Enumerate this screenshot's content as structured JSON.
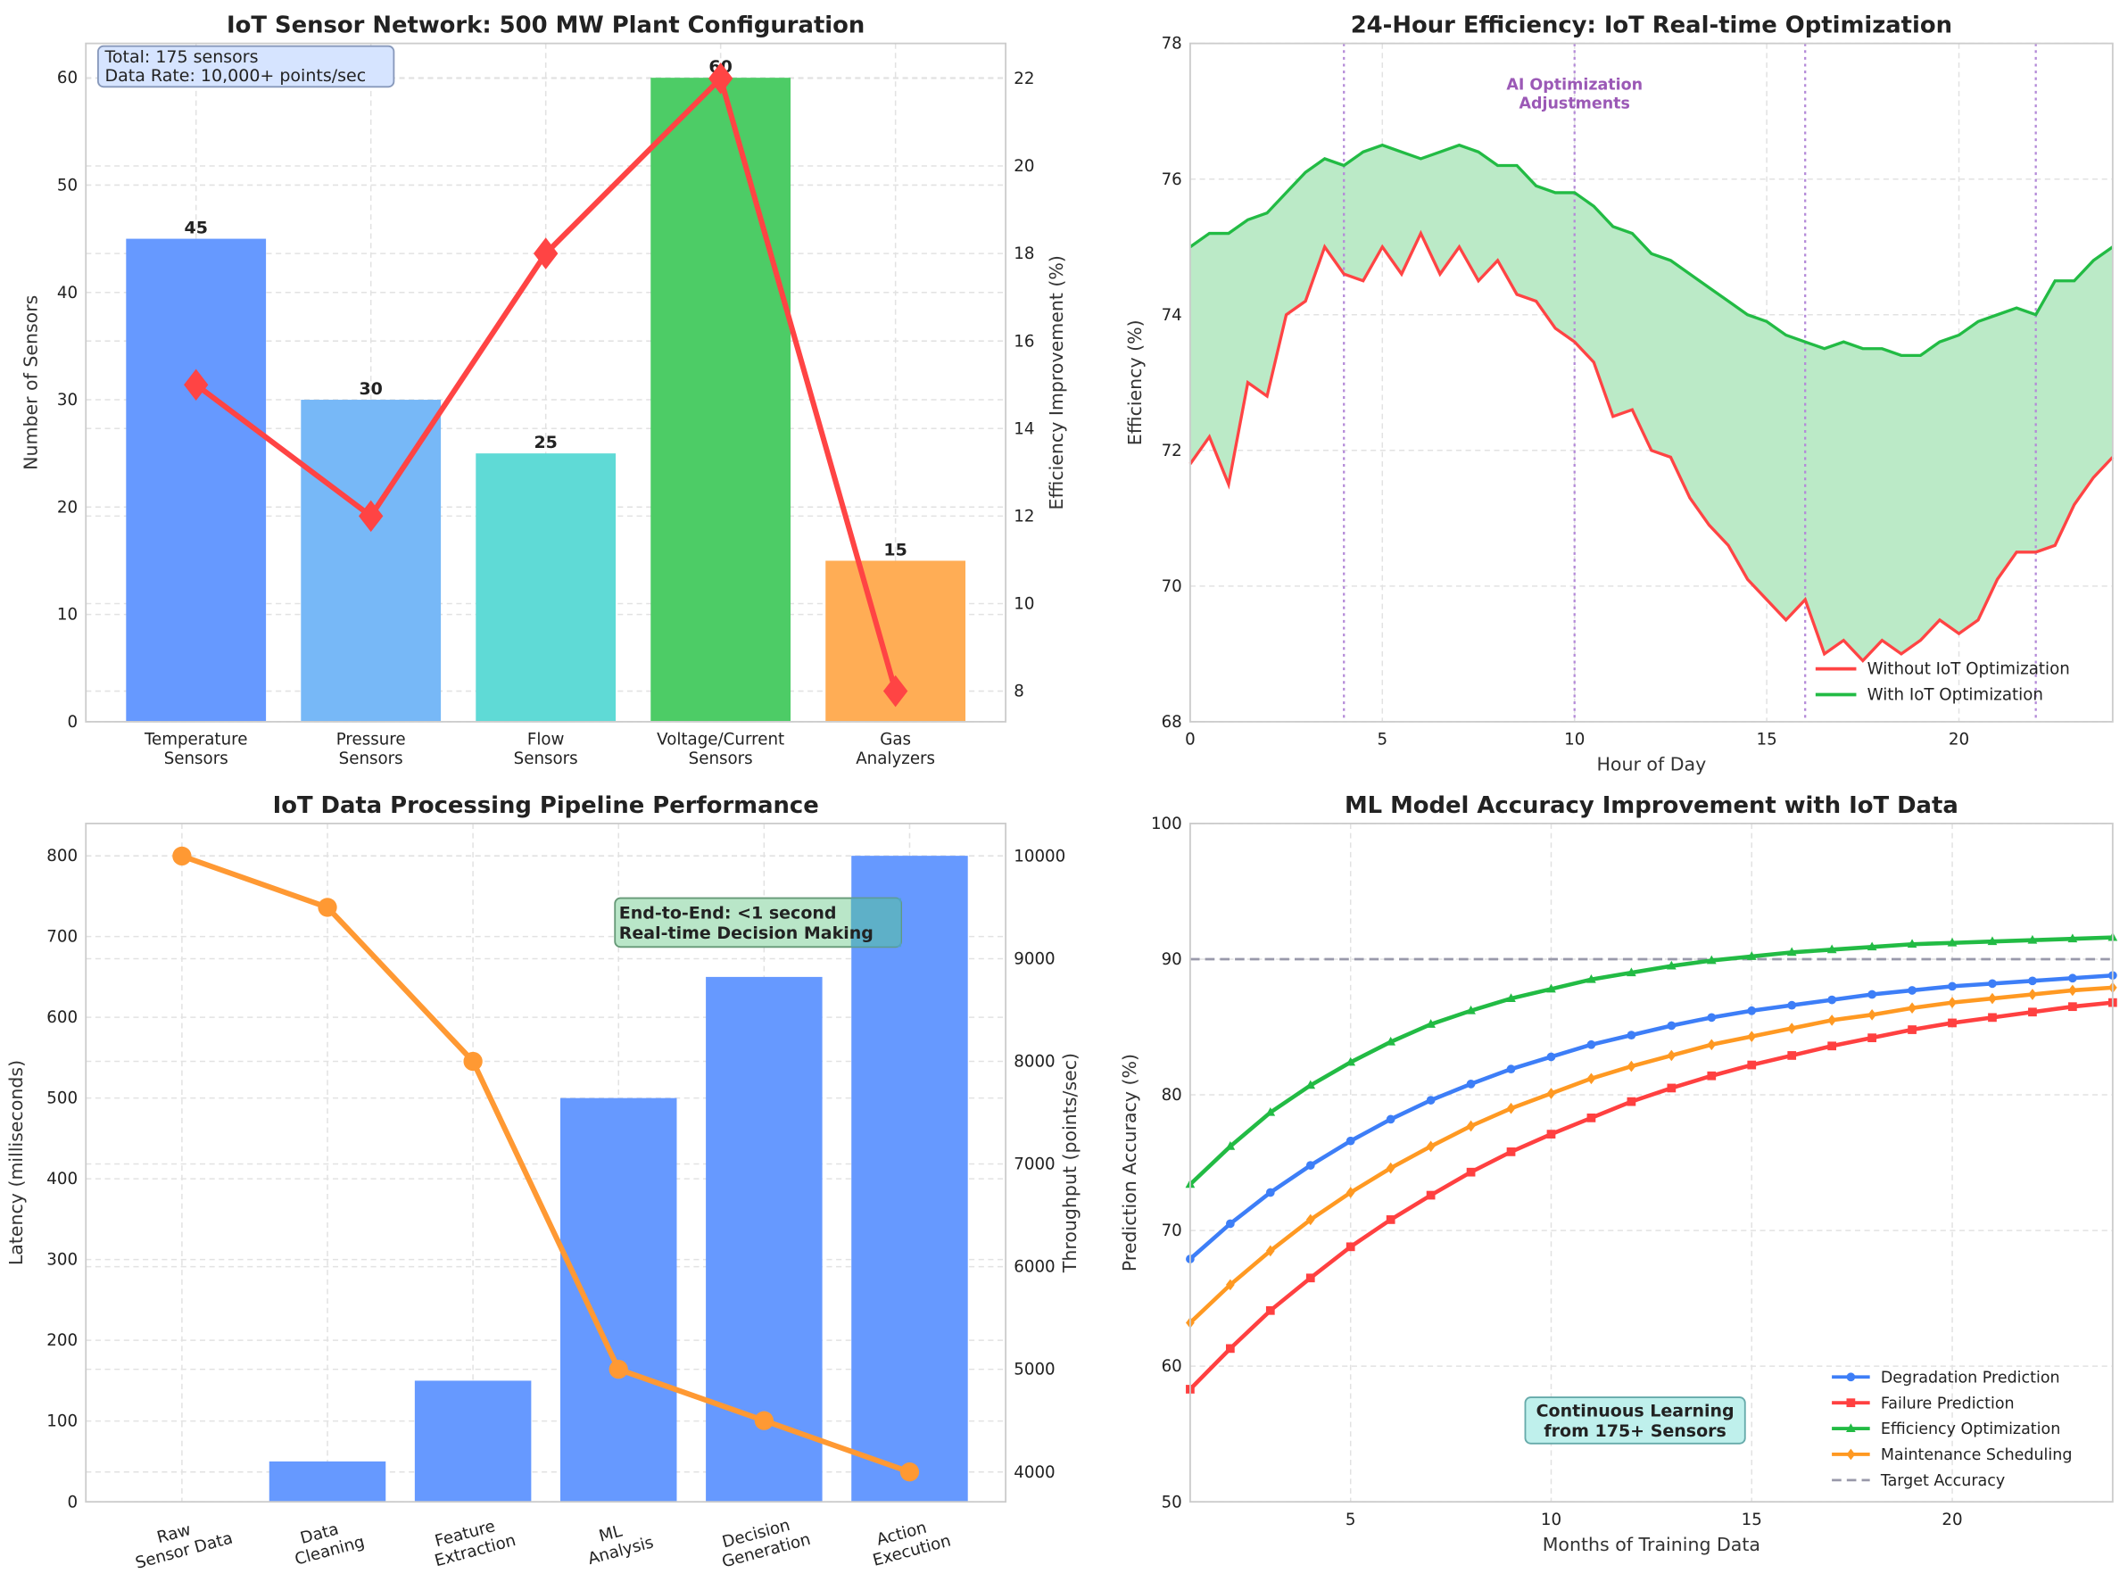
{
  "chart_data": [
    {
      "type": "bar+line",
      "title": "IoT Sensor Network: 500 MW Plant Configuration",
      "categories": [
        [
          "Temperature",
          "Sensors"
        ],
        [
          "Pressure",
          "Sensors"
        ],
        [
          "Flow",
          "Sensors"
        ],
        [
          "Voltage/Current",
          "Sensors"
        ],
        [
          "Gas",
          "Analyzers"
        ]
      ],
      "values": [
        45,
        30,
        25,
        60,
        15
      ],
      "data_labels": [
        "45",
        "30",
        "25",
        "60",
        "15"
      ],
      "bar_colors": [
        "#6699ff",
        "#77b8f7",
        "#5fdad6",
        "#4dcc66",
        "#ffad55"
      ],
      "ylabel": "Number of Sensors",
      "ylim": [
        0,
        63.2
      ],
      "yticks": [
        0,
        10,
        20,
        30,
        40,
        50,
        60
      ],
      "y2label": "Efficiency Improvement (%)",
      "y2lim": [
        7.3,
        22.8
      ],
      "y2ticks": [
        8,
        10,
        12,
        14,
        16,
        18,
        20,
        22
      ],
      "line_values": [
        15,
        12,
        18,
        22,
        8
      ],
      "line_color": "#ff4444",
      "annotation": [
        "Total: 175 sensors",
        "Data Rate: 10,000+ points/sec"
      ],
      "grid": true
    },
    {
      "type": "line",
      "title": "24-Hour Efficiency: IoT Real-time Optimization",
      "xlabel": "Hour of Day",
      "ylabel": "Efficiency (%)",
      "xlim": [
        0,
        24
      ],
      "ylim": [
        68,
        78
      ],
      "xticks": [
        0,
        5,
        10,
        15,
        20
      ],
      "yticks": [
        68,
        70,
        72,
        74,
        76,
        78
      ],
      "x": [
        0,
        0.5,
        1,
        1.5,
        2,
        2.5,
        3,
        3.5,
        4,
        4.5,
        5,
        5.5,
        6,
        6.5,
        7,
        7.5,
        8,
        8.5,
        9,
        9.5,
        10,
        10.5,
        11,
        11.5,
        12,
        12.5,
        13,
        13.5,
        14,
        14.5,
        15,
        15.5,
        16,
        16.5,
        17,
        17.5,
        18,
        18.5,
        19,
        19.5,
        20,
        20.5,
        21,
        21.5,
        22,
        22.5,
        23,
        23.5,
        24
      ],
      "series": [
        {
          "name": "Without IoT Optimization",
          "color": "#ff4444",
          "values": [
            71.8,
            72.2,
            71.5,
            73.0,
            72.8,
            74.0,
            74.2,
            75.0,
            74.6,
            74.5,
            75.0,
            74.6,
            75.2,
            74.6,
            75.0,
            74.5,
            74.8,
            74.3,
            74.2,
            73.8,
            73.6,
            73.3,
            72.5,
            72.6,
            72.0,
            71.9,
            71.3,
            70.9,
            70.6,
            70.1,
            69.8,
            69.5,
            69.8,
            69.0,
            69.2,
            68.9,
            69.2,
            69.0,
            69.2,
            69.5,
            69.3,
            69.5,
            70.1,
            70.5,
            70.5,
            70.6,
            71.2,
            71.6,
            71.9
          ]
        },
        {
          "name": "With IoT Optimization",
          "color": "#22bb44",
          "values": [
            75.0,
            75.2,
            75.2,
            75.4,
            75.5,
            75.8,
            76.1,
            76.3,
            76.2,
            76.4,
            76.5,
            76.4,
            76.3,
            76.4,
            76.5,
            76.4,
            76.2,
            76.2,
            75.9,
            75.8,
            75.8,
            75.6,
            75.3,
            75.2,
            74.9,
            74.8,
            74.6,
            74.4,
            74.2,
            74.0,
            73.9,
            73.7,
            73.6,
            73.5,
            73.6,
            73.5,
            73.5,
            73.4,
            73.4,
            73.6,
            73.7,
            73.9,
            74.0,
            74.1,
            74.0,
            74.5,
            74.5,
            74.8,
            75.0
          ]
        }
      ],
      "fill_color": "#bbeac7",
      "vlines": [
        4,
        10,
        16,
        22
      ],
      "vline_color": "#b48ad8",
      "annotation": [
        "AI Optimization",
        "Adjustments"
      ],
      "annotation_color": "#9b59b6",
      "legend": "bottom-right",
      "grid": true
    },
    {
      "type": "bar+line",
      "title": "IoT Data Processing Pipeline Performance",
      "categories": [
        [
          "Raw",
          "Sensor Data"
        ],
        [
          "Data",
          "Cleaning"
        ],
        [
          "Feature",
          "Extraction"
        ],
        [
          "ML",
          "Analysis"
        ],
        [
          "Decision",
          "Generation"
        ],
        [
          "Action",
          "Execution"
        ]
      ],
      "values": [
        0,
        50,
        150,
        500,
        650,
        800
      ],
      "bar_color": "#6699ff",
      "ylabel": "Latency (milliseconds)",
      "ylabel_color": "#4f86f7",
      "ylim": [
        0,
        840
      ],
      "yticks": [
        0,
        100,
        200,
        300,
        400,
        500,
        600,
        700,
        800
      ],
      "y2label": "Throughput (points/sec)",
      "y2lim": [
        3709,
        10317
      ],
      "y2ticks": [
        4000,
        5000,
        6000,
        7000,
        8000,
        9000,
        10000
      ],
      "line_values": [
        10000,
        9500,
        8000,
        5000,
        4500,
        4000
      ],
      "line_color": "#ff9933",
      "annotation": [
        "End-to-End: <1 second",
        "Real-time Decision Making"
      ],
      "grid": true
    },
    {
      "type": "line",
      "title": "ML Model Accuracy Improvement with IoT Data",
      "xlabel": "Months of Training Data",
      "ylabel": "Prediction Accuracy (%)",
      "xlim": [
        1,
        24
      ],
      "ylim": [
        50,
        100
      ],
      "xticks": [
        5,
        10,
        15,
        20
      ],
      "yticks": [
        50,
        60,
        70,
        80,
        90,
        100
      ],
      "x": [
        1,
        2,
        3,
        4,
        5,
        6,
        7,
        8,
        9,
        10,
        11,
        12,
        13,
        14,
        15,
        16,
        17,
        18,
        19,
        20,
        21,
        22,
        23,
        24
      ],
      "series": [
        {
          "name": "Degradation Prediction",
          "color": "#3d7ef7",
          "marker": "circle",
          "values": [
            67.9,
            70.5,
            72.8,
            74.8,
            76.6,
            78.2,
            79.6,
            80.8,
            81.9,
            82.8,
            83.7,
            84.4,
            85.1,
            85.7,
            86.2,
            86.6,
            87.0,
            87.4,
            87.7,
            88.0,
            88.2,
            88.4,
            88.6,
            88.8
          ]
        },
        {
          "name": "Failure Prediction",
          "color": "#ff4040",
          "marker": "square",
          "values": [
            58.3,
            61.3,
            64.1,
            66.5,
            68.8,
            70.8,
            72.6,
            74.3,
            75.8,
            77.1,
            78.3,
            79.5,
            80.5,
            81.4,
            82.2,
            82.9,
            83.6,
            84.2,
            84.8,
            85.3,
            85.7,
            86.1,
            86.5,
            86.8
          ]
        },
        {
          "name": "Efficiency Optimization",
          "color": "#22bb44",
          "marker": "triangle",
          "values": [
            73.4,
            76.2,
            78.7,
            80.7,
            82.4,
            83.9,
            85.2,
            86.2,
            87.1,
            87.8,
            88.5,
            89.0,
            89.5,
            89.9,
            90.2,
            90.5,
            90.7,
            90.9,
            91.1,
            91.2,
            91.3,
            91.4,
            91.5,
            91.6
          ]
        },
        {
          "name": "Maintenance Scheduling",
          "color": "#ff9922",
          "marker": "diamond",
          "values": [
            63.2,
            66.0,
            68.5,
            70.8,
            72.8,
            74.6,
            76.2,
            77.7,
            79.0,
            80.1,
            81.2,
            82.1,
            82.9,
            83.7,
            84.3,
            84.9,
            85.5,
            85.9,
            86.4,
            86.8,
            87.1,
            87.4,
            87.7,
            87.9
          ]
        }
      ],
      "target": {
        "name": "Target Accuracy",
        "value": 90,
        "color": "#9999aa"
      },
      "annotation": [
        "Continuous Learning",
        "from 175+ Sensors"
      ],
      "legend": "bottom-right",
      "grid": true
    }
  ]
}
